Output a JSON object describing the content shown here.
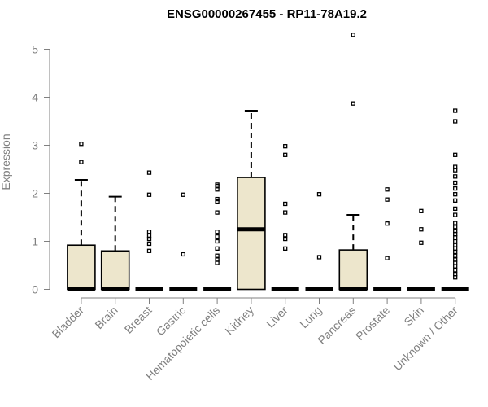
{
  "chart_data": {
    "type": "boxplot",
    "title": "ENSG00000267455 - RP11-78A19.2",
    "xlabel": "",
    "ylabel": "Expression",
    "ylim": [
      0,
      5.3
    ],
    "yticks": [
      0,
      1,
      2,
      3,
      4,
      5
    ],
    "grid": false,
    "box_color": "#ede6cc",
    "categories": [
      "Bladder",
      "Brain",
      "Breast",
      "Gastric",
      "Hematopoietic cells",
      "Kidney",
      "Liver",
      "Lung",
      "Pancreas",
      "Prostate",
      "Skin",
      "Unknown / Other"
    ],
    "boxes": [
      {
        "q1": 0,
        "median": 0,
        "q3": 0.92,
        "whisker_low": 0,
        "whisker_high": 2.28,
        "outliers": [
          2.65,
          3.03
        ]
      },
      {
        "q1": 0,
        "median": 0,
        "q3": 0.8,
        "whisker_low": 0,
        "whisker_high": 1.93,
        "outliers": []
      },
      {
        "q1": 0,
        "median": 0,
        "q3": 0,
        "whisker_low": 0,
        "whisker_high": 0,
        "outliers": [
          0.8,
          0.95,
          1.05,
          1.12,
          1.2,
          1.97,
          2.43
        ]
      },
      {
        "q1": 0,
        "median": 0,
        "q3": 0,
        "whisker_low": 0,
        "whisker_high": 0,
        "outliers": [
          0.73,
          1.97
        ]
      },
      {
        "q1": 0,
        "median": 0,
        "q3": 0,
        "whisker_low": 0,
        "whisker_high": 0,
        "outliers": [
          0.55,
          0.62,
          0.7,
          0.85,
          1.0,
          1.1,
          1.2,
          1.6,
          1.83,
          1.88,
          2.08,
          2.15,
          2.18
        ]
      },
      {
        "q1": 0,
        "median": 1.25,
        "q3": 2.33,
        "whisker_low": 0,
        "whisker_high": 3.72,
        "outliers": []
      },
      {
        "q1": 0,
        "median": 0,
        "q3": 0,
        "whisker_low": 0,
        "whisker_high": 0,
        "outliers": [
          0.85,
          1.05,
          1.13,
          1.6,
          1.78,
          2.8,
          2.98
        ]
      },
      {
        "q1": 0,
        "median": 0,
        "q3": 0,
        "whisker_low": 0,
        "whisker_high": 0,
        "outliers": [
          0.67,
          1.98
        ]
      },
      {
        "q1": 0,
        "median": 0,
        "q3": 0.82,
        "whisker_low": 0,
        "whisker_high": 1.55,
        "outliers": [
          3.87,
          5.3
        ]
      },
      {
        "q1": 0,
        "median": 0,
        "q3": 0,
        "whisker_low": 0,
        "whisker_high": 0,
        "outliers": [
          0.65,
          1.37,
          1.87,
          2.08
        ]
      },
      {
        "q1": 0,
        "median": 0,
        "q3": 0,
        "whisker_low": 0,
        "whisker_high": 0,
        "outliers": [
          0.97,
          1.25,
          1.63
        ]
      },
      {
        "q1": 0,
        "median": 0,
        "q3": 0,
        "whisker_low": 0,
        "whisker_high": 0,
        "outliers": [
          0.25,
          0.32,
          0.4,
          0.48,
          0.55,
          0.62,
          0.7,
          0.78,
          0.85,
          0.92,
          1.0,
          1.08,
          1.15,
          1.22,
          1.3,
          1.38,
          1.55,
          1.68,
          1.85,
          1.98,
          2.1,
          2.22,
          2.35,
          2.48,
          2.55,
          2.8,
          3.5,
          3.72
        ]
      }
    ]
  }
}
